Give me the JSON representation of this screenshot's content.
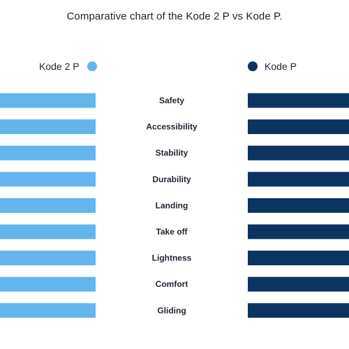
{
  "chart_data": {
    "type": "bar",
    "title": "Comparative chart of the Kode 2 P vs Kode P.",
    "categories": [
      "Safety",
      "Accessibility",
      "Stability",
      "Durability",
      "Landing",
      "Take off",
      "Lightness",
      "Comfort",
      "Gliding"
    ],
    "series": [
      {
        "name": "Kode 2 P",
        "color": "#63b5ee",
        "values": [
          5,
          5,
          5,
          5,
          5,
          5,
          5,
          5,
          5
        ]
      },
      {
        "name": "Kode P",
        "color": "#0d3461",
        "values": [
          5,
          5,
          5,
          5,
          5,
          5,
          5,
          5,
          5
        ]
      }
    ],
    "xlim": [
      0,
      5
    ],
    "grid": false,
    "legend_position": "top"
  }
}
